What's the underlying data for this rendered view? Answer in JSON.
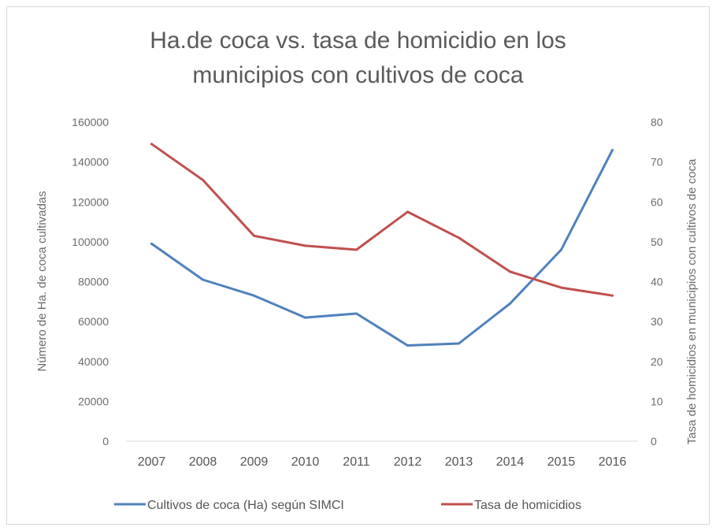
{
  "chart_data": {
    "type": "line",
    "title_lines": [
      "Ha.de coca vs. tasa de homicidio en los",
      "municipios con cultivos de coca"
    ],
    "categories": [
      "2007",
      "2008",
      "2009",
      "2010",
      "2011",
      "2012",
      "2013",
      "2014",
      "2015",
      "2016"
    ],
    "ylabel_left": "Número de Ha. de coca cultivadas",
    "ylabel_right": "Tasa de homicidios en municipios con cultivos de coca",
    "ylim_left": [
      0,
      160000
    ],
    "yticks_left": [
      "0",
      "20000",
      "40000",
      "60000",
      "80000",
      "100000",
      "120000",
      "140000",
      "160000"
    ],
    "ylim_right": [
      0,
      80
    ],
    "yticks_right": [
      "0",
      "10",
      "20",
      "30",
      "40",
      "50",
      "60",
      "70",
      "80"
    ],
    "grid": false,
    "legend_position": "bottom",
    "series": [
      {
        "name": "Cultivos de coca (Ha) según SIMCI",
        "axis": "left",
        "color": "#4f81bd",
        "values": [
          99000,
          81000,
          73000,
          62000,
          64000,
          48000,
          49000,
          69000,
          96000,
          146000
        ]
      },
      {
        "name": "Tasa de homicidios",
        "axis": "right",
        "color": "#c0504d",
        "values": [
          74.5,
          65.5,
          51.5,
          49,
          48,
          57.5,
          51,
          42.5,
          38.5,
          36.5
        ]
      }
    ]
  }
}
